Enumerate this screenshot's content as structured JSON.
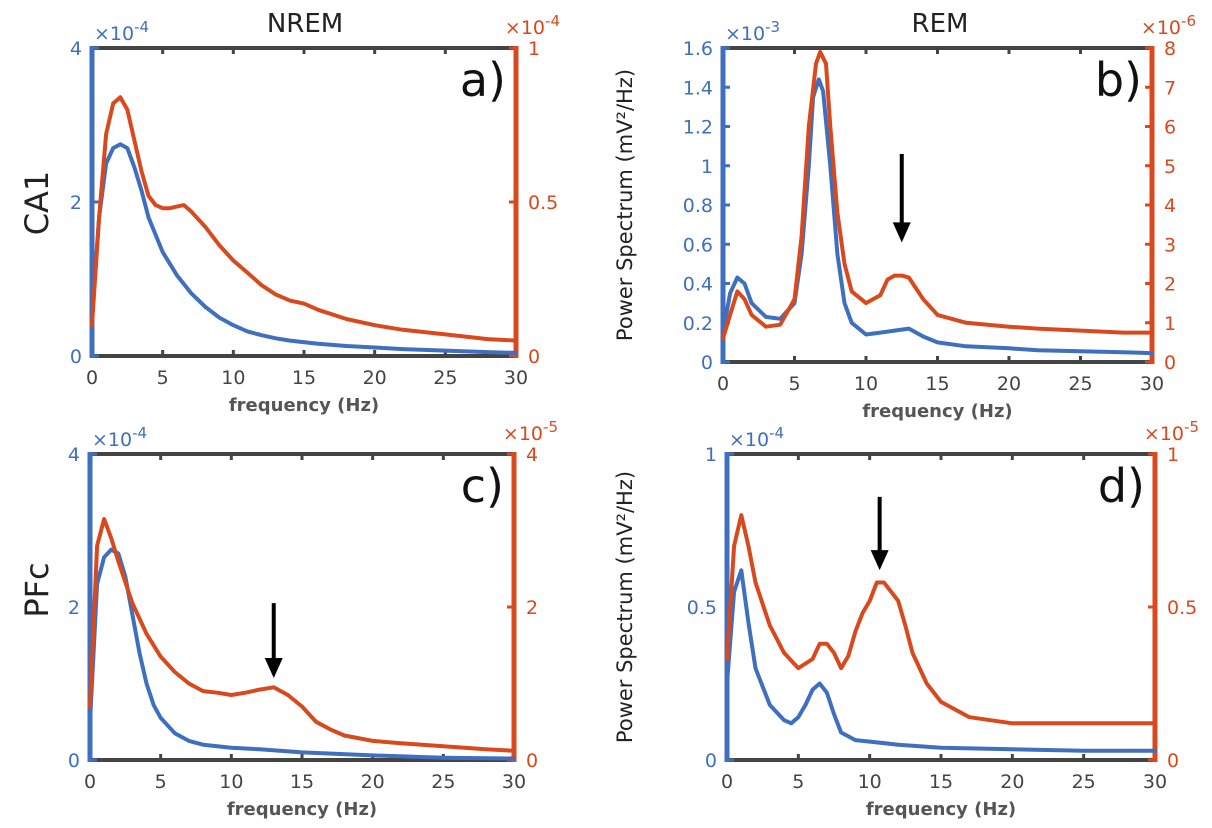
{
  "figure": {
    "column_titles": [
      "NREM",
      "REM"
    ],
    "row_labels": [
      "CA1",
      "PFc"
    ],
    "ylabel": "Power Spectrum (mV²/Hz)",
    "xlabel": "frequency (Hz)"
  },
  "colors": {
    "blue": "#3f6fbf",
    "red": "#d9491e",
    "axis": "#444444",
    "arrow": "#000000",
    "text": "#222222"
  },
  "chart_data": [
    {
      "type": "line",
      "panel_label": "a)",
      "title": "NREM",
      "row_label": "CA1",
      "xlabel": "frequency (Hz)",
      "ylabel": "",
      "xlim": [
        0,
        30
      ],
      "xticks": [
        0,
        5,
        10,
        15,
        20,
        25,
        30
      ],
      "left_axis": {
        "ylim": [
          0,
          4
        ],
        "ticks": [
          0,
          2,
          4
        ],
        "tick_labels": [
          "0",
          "2",
          "4"
        ],
        "multiplier": "×10^-4"
      },
      "right_axis": {
        "ylim": [
          0,
          1
        ],
        "ticks": [
          0,
          0.5,
          1
        ],
        "tick_labels": [
          "0",
          "0.5",
          "1"
        ],
        "multiplier": "×10^-4"
      },
      "grid": false,
      "arrows": [],
      "series": [
        {
          "axis": "left",
          "color": "blue",
          "x": [
            0,
            0.5,
            1,
            1.5,
            2,
            2.5,
            3,
            3.5,
            4,
            5,
            6,
            7,
            8,
            9,
            10,
            11,
            12,
            13,
            14,
            16,
            18,
            20,
            22,
            25,
            28,
            30
          ],
          "y": [
            0.5,
            1.8,
            2.5,
            2.7,
            2.75,
            2.7,
            2.45,
            2.15,
            1.8,
            1.35,
            1.05,
            0.82,
            0.64,
            0.5,
            0.4,
            0.32,
            0.27,
            0.23,
            0.2,
            0.16,
            0.13,
            0.11,
            0.09,
            0.07,
            0.05,
            0.04
          ]
        },
        {
          "axis": "right",
          "color": "red",
          "x": [
            0,
            0.5,
            1,
            1.5,
            2,
            2.5,
            3,
            3.5,
            4,
            4.5,
            5,
            5.5,
            6,
            6.5,
            7,
            8,
            9,
            10,
            11,
            12,
            13,
            14,
            15,
            16,
            18,
            20,
            22,
            25,
            28,
            30
          ],
          "y": [
            0.1,
            0.45,
            0.72,
            0.82,
            0.84,
            0.8,
            0.7,
            0.6,
            0.52,
            0.49,
            0.48,
            0.48,
            0.485,
            0.49,
            0.47,
            0.42,
            0.36,
            0.31,
            0.27,
            0.23,
            0.2,
            0.18,
            0.17,
            0.15,
            0.12,
            0.1,
            0.085,
            0.07,
            0.055,
            0.05
          ]
        }
      ]
    },
    {
      "type": "line",
      "panel_label": "b)",
      "title": "REM",
      "row_label": "",
      "xlabel": "frequency (Hz)",
      "ylabel": "Power Spectrum (mV²/Hz)",
      "xlim": [
        0,
        30
      ],
      "xticks": [
        0,
        5,
        10,
        15,
        20,
        25,
        30
      ],
      "left_axis": {
        "ylim": [
          0,
          1.6
        ],
        "ticks": [
          0,
          0.2,
          0.4,
          0.6,
          0.8,
          1,
          1.2,
          1.4,
          1.6
        ],
        "tick_labels": [
          "0",
          "0.2",
          "0.4",
          "0.6",
          "0.8",
          "1",
          "1.2",
          "1.4",
          "1.6"
        ],
        "multiplier": "×10^-3"
      },
      "right_axis": {
        "ylim": [
          0,
          8
        ],
        "ticks": [
          0,
          1,
          2,
          3,
          4,
          5,
          6,
          7,
          8
        ],
        "tick_labels": [
          "0",
          "1",
          "2",
          "3",
          "4",
          "5",
          "6",
          "7",
          "8"
        ],
        "multiplier": "×10^-6"
      },
      "grid": false,
      "arrows": [
        {
          "x": 12.5,
          "y_from": 5.3,
          "y_to": 3.2,
          "axis": "right"
        }
      ],
      "series": [
        {
          "axis": "left",
          "color": "blue",
          "x": [
            0,
            0.5,
            1,
            1.5,
            2,
            3,
            4,
            5,
            5.5,
            6,
            6.3,
            6.7,
            7,
            7.5,
            8,
            8.5,
            9,
            10,
            11,
            12,
            13,
            14,
            15,
            17,
            20,
            22,
            25,
            28,
            30
          ],
          "y": [
            0.15,
            0.35,
            0.43,
            0.4,
            0.3,
            0.23,
            0.22,
            0.3,
            0.55,
            1.0,
            1.35,
            1.44,
            1.38,
            1.0,
            0.55,
            0.3,
            0.2,
            0.14,
            0.15,
            0.16,
            0.17,
            0.13,
            0.1,
            0.08,
            0.07,
            0.06,
            0.055,
            0.05,
            0.045
          ]
        },
        {
          "axis": "right",
          "color": "red",
          "x": [
            0,
            0.5,
            1,
            1.5,
            2,
            3,
            4,
            5,
            5.5,
            6,
            6.5,
            6.8,
            7.2,
            7.5,
            8,
            8.5,
            9,
            10,
            11,
            11.5,
            12,
            12.5,
            13,
            14,
            15,
            17,
            20,
            22,
            25,
            28,
            30
          ],
          "y": [
            0.6,
            1.2,
            1.8,
            1.6,
            1.2,
            0.9,
            0.95,
            1.6,
            3.2,
            6.0,
            7.6,
            7.9,
            7.6,
            6.0,
            3.8,
            2.5,
            1.8,
            1.5,
            1.7,
            2.1,
            2.2,
            2.2,
            2.15,
            1.6,
            1.2,
            1.0,
            0.9,
            0.85,
            0.8,
            0.75,
            0.75
          ]
        }
      ]
    },
    {
      "type": "line",
      "panel_label": "c)",
      "title": "",
      "row_label": "PFc",
      "xlabel": "frequency (Hz)",
      "ylabel": "",
      "xlim": [
        0,
        30
      ],
      "xticks": [
        0,
        5,
        10,
        15,
        20,
        25,
        30
      ],
      "left_axis": {
        "ylim": [
          0,
          4
        ],
        "ticks": [
          0,
          2,
          4
        ],
        "tick_labels": [
          "0",
          "2",
          "4"
        ],
        "multiplier": "×10^-4"
      },
      "right_axis": {
        "ylim": [
          0,
          4
        ],
        "ticks": [
          0,
          2,
          4
        ],
        "tick_labels": [
          "0",
          "2",
          "4"
        ],
        "multiplier": "×10^-5"
      },
      "grid": false,
      "arrows": [
        {
          "x": 13,
          "y_from": 2.05,
          "y_to": 1.15,
          "axis": "right"
        }
      ],
      "series": [
        {
          "axis": "left",
          "color": "blue",
          "x": [
            0,
            0.5,
            1,
            1.5,
            2,
            2.5,
            3,
            3.5,
            4,
            4.5,
            5,
            6,
            7,
            8,
            10,
            12,
            15,
            20,
            25,
            30
          ],
          "y": [
            0.5,
            2.3,
            2.65,
            2.75,
            2.7,
            2.4,
            1.9,
            1.4,
            1.0,
            0.72,
            0.55,
            0.35,
            0.25,
            0.2,
            0.16,
            0.14,
            0.1,
            0.06,
            0.03,
            0.02
          ]
        },
        {
          "axis": "right",
          "color": "red",
          "x": [
            0,
            0.5,
            1,
            1.5,
            2,
            3,
            4,
            5,
            6,
            7,
            8,
            9,
            10,
            11,
            12,
            13,
            14,
            15,
            16,
            17,
            18,
            20,
            22,
            25,
            28,
            30
          ],
          "y": [
            0.7,
            2.8,
            3.15,
            2.9,
            2.6,
            2.05,
            1.65,
            1.35,
            1.15,
            1.0,
            0.9,
            0.88,
            0.85,
            0.88,
            0.92,
            0.95,
            0.85,
            0.7,
            0.5,
            0.4,
            0.32,
            0.25,
            0.22,
            0.18,
            0.14,
            0.12
          ]
        }
      ]
    },
    {
      "type": "line",
      "panel_label": "d)",
      "title": "",
      "row_label": "",
      "xlabel": "frequency (Hz)",
      "ylabel": "Power Spectrum (mV²/Hz)",
      "xlim": [
        0,
        30
      ],
      "xticks": [
        0,
        5,
        10,
        15,
        20,
        25,
        30
      ],
      "left_axis": {
        "ylim": [
          0,
          1
        ],
        "ticks": [
          0,
          0.5,
          1
        ],
        "tick_labels": [
          "0",
          "0.5",
          "1"
        ],
        "multiplier": "×10^-4"
      },
      "right_axis": {
        "ylim": [
          0,
          1
        ],
        "ticks": [
          0,
          0.5,
          1
        ],
        "tick_labels": [
          "0",
          "0.5",
          "1"
        ],
        "multiplier": "×10^-5"
      },
      "grid": false,
      "arrows": [
        {
          "x": 10.7,
          "y_from": 0.86,
          "y_to": 0.64,
          "axis": "right"
        }
      ],
      "series": [
        {
          "axis": "left",
          "color": "blue",
          "x": [
            0,
            0.5,
            1,
            1.5,
            2,
            3,
            4,
            4.5,
            5,
            5.5,
            6,
            6.5,
            7,
            7.5,
            8,
            9,
            10,
            12,
            15,
            20,
            25,
            30
          ],
          "y": [
            0.25,
            0.55,
            0.62,
            0.45,
            0.3,
            0.18,
            0.13,
            0.12,
            0.14,
            0.18,
            0.23,
            0.25,
            0.22,
            0.15,
            0.09,
            0.065,
            0.06,
            0.05,
            0.04,
            0.035,
            0.03,
            0.03
          ]
        },
        {
          "axis": "right",
          "color": "red",
          "x": [
            0,
            0.5,
            1,
            1.5,
            2,
            3,
            4,
            5,
            6,
            6.5,
            7,
            7.5,
            8,
            8.5,
            9,
            9.5,
            10,
            10.5,
            11,
            11.5,
            12,
            12.5,
            13,
            14,
            15,
            17,
            20,
            22,
            25,
            28,
            30
          ],
          "y": [
            0.33,
            0.7,
            0.8,
            0.7,
            0.58,
            0.44,
            0.35,
            0.3,
            0.33,
            0.38,
            0.38,
            0.35,
            0.3,
            0.34,
            0.42,
            0.48,
            0.52,
            0.58,
            0.58,
            0.55,
            0.52,
            0.44,
            0.35,
            0.25,
            0.19,
            0.14,
            0.12,
            0.12,
            0.12,
            0.12,
            0.12
          ]
        }
      ]
    }
  ]
}
